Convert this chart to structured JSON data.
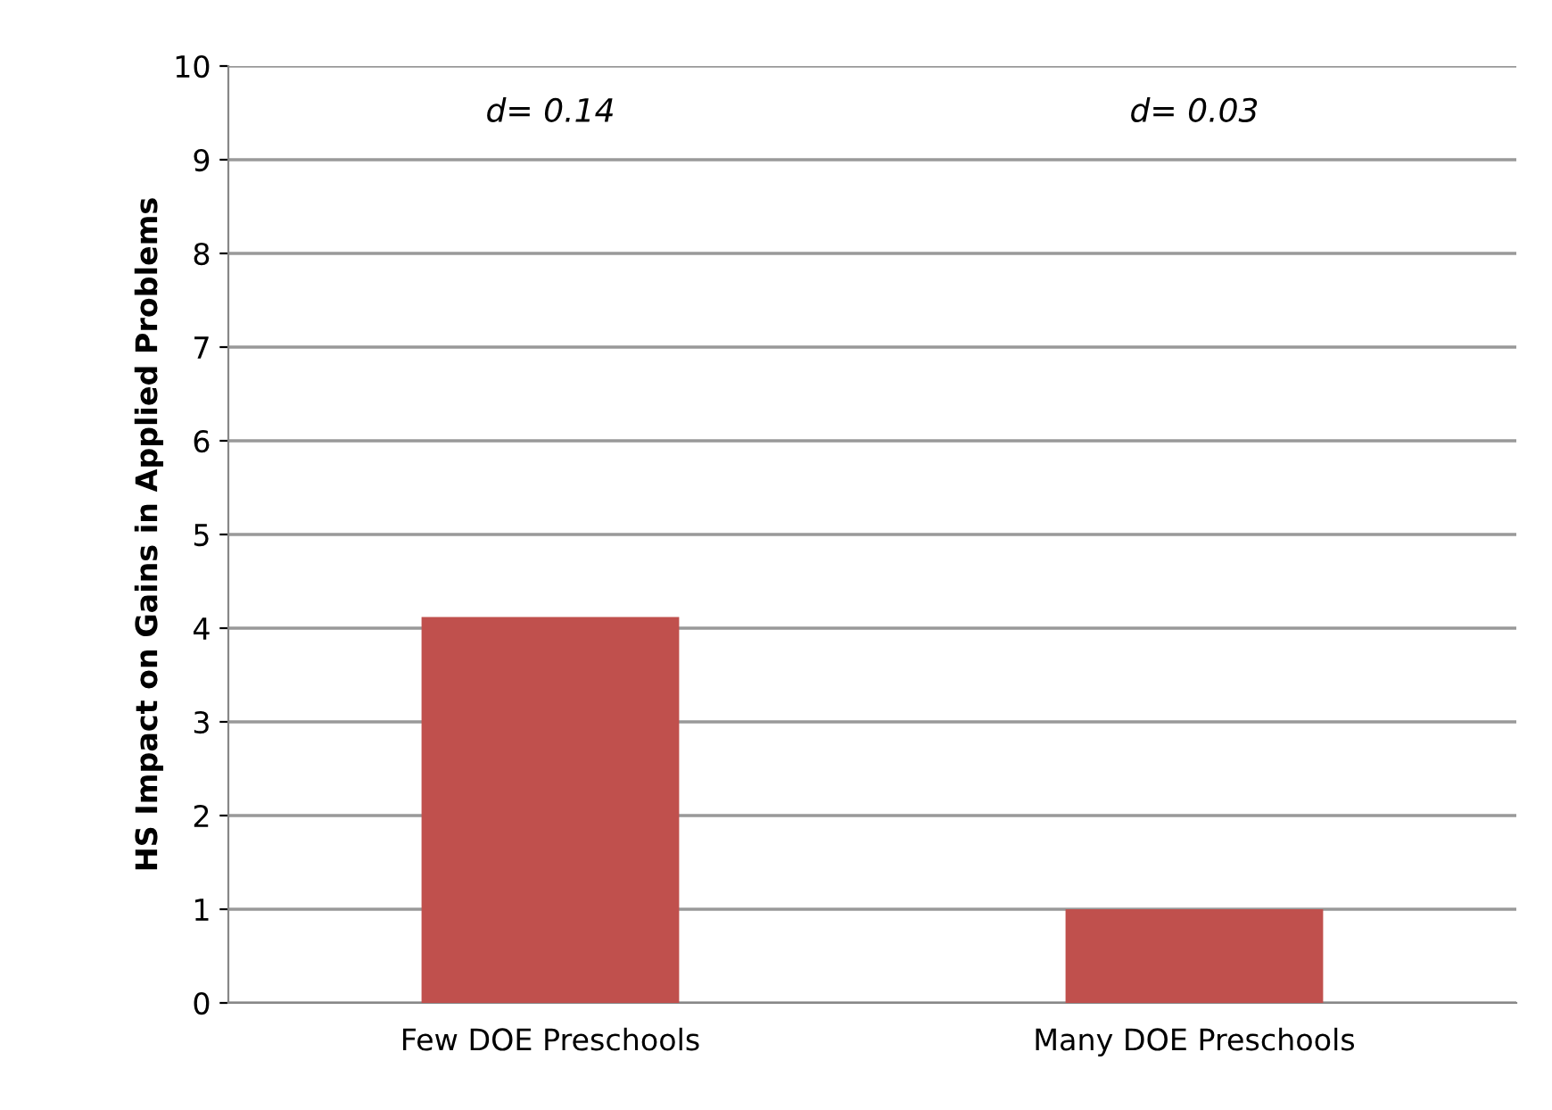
{
  "chart_data": {
    "type": "bar",
    "ylabel": "HS Impact on Gains in Applied Problems",
    "categories": [
      "Few DOE Preschools",
      "Many DOE Preschools"
    ],
    "values": [
      4.12,
      1.0
    ],
    "color": "#c0504d",
    "ylim": [
      0,
      10
    ],
    "yticks": [
      0,
      1,
      2,
      3,
      4,
      5,
      6,
      7,
      8,
      9,
      10
    ],
    "grid": "y",
    "legend": false,
    "annotations": [
      "d= 0.14",
      "d= 0.03"
    ]
  }
}
